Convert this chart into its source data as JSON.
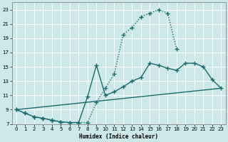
{
  "xlabel": "Humidex (Indice chaleur)",
  "xlim": [
    -0.5,
    23.5
  ],
  "ylim": [
    7,
    24
  ],
  "xticks": [
    0,
    1,
    2,
    3,
    4,
    5,
    6,
    7,
    8,
    9,
    10,
    11,
    12,
    13,
    14,
    15,
    16,
    17,
    18,
    19,
    20,
    21,
    22,
    23
  ],
  "yticks": [
    7,
    9,
    11,
    13,
    15,
    17,
    19,
    21,
    23
  ],
  "bg_color": "#cce8e8",
  "line_color": "#1a6b6b",
  "grid_color": "#ffffff",
  "lines": [
    {
      "x": [
        0,
        1,
        2,
        3,
        4,
        5,
        6,
        7,
        8,
        9,
        10,
        11,
        12,
        13,
        14,
        15,
        16,
        17,
        18
      ],
      "y": [
        9,
        8.5,
        8.0,
        7.8,
        7.6,
        7.3,
        7.2,
        7.2,
        7.2,
        10.0,
        12.0,
        14.0,
        19.5,
        20.5,
        22.0,
        22.5,
        23.0,
        22.5,
        17.5
      ],
      "style": "dotted",
      "marker": "+",
      "markersize": 4,
      "linewidth": 1.0
    },
    {
      "x": [
        0,
        1,
        2,
        3,
        4,
        5,
        6,
        7,
        8,
        9,
        10,
        11,
        12,
        13,
        14,
        15,
        16,
        17,
        18,
        19,
        20,
        21,
        22,
        23
      ],
      "y": [
        9.0,
        8.5,
        8.0,
        7.8,
        7.5,
        7.3,
        7.2,
        7.2,
        10.8,
        15.2,
        11.0,
        11.5,
        12.2,
        13.0,
        13.5,
        15.5,
        15.2,
        14.8,
        14.5,
        15.5,
        15.5,
        15.0,
        13.2,
        12.0
      ],
      "style": "solid",
      "marker": "+",
      "markersize": 4,
      "linewidth": 1.0
    },
    {
      "x": [
        0,
        23
      ],
      "y": [
        9.0,
        12.0
      ],
      "style": "solid",
      "marker": null,
      "markersize": 0,
      "linewidth": 1.0
    }
  ]
}
